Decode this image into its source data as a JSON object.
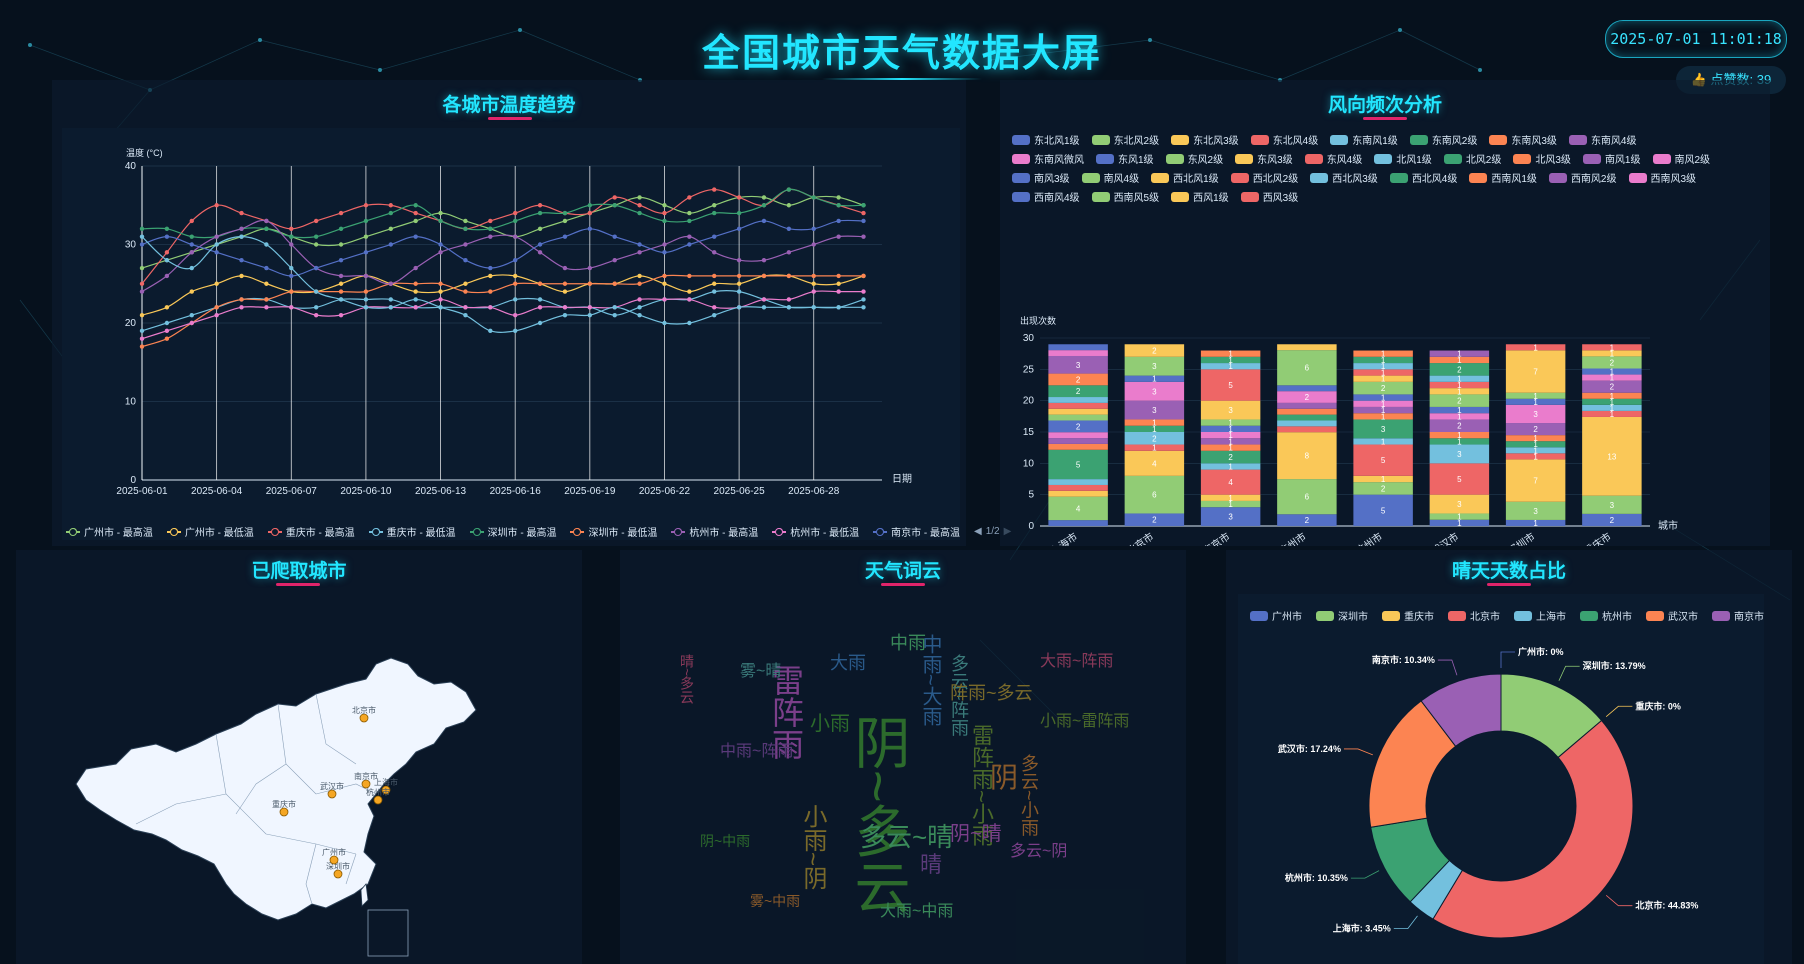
{
  "header": {
    "title": "全国城市天气数据大屏",
    "datetime": "2025-07-01 11:01:18",
    "likes": "👍 点赞数: 39"
  },
  "colors": {
    "accent": "#22e6ff",
    "underline": "#e0246a",
    "palette": [
      "#5470c6",
      "#91cc75",
      "#fac858",
      "#ee6666",
      "#73c0de",
      "#3ba272",
      "#fc8452",
      "#9a60b4",
      "#ea7ccc"
    ]
  },
  "temp_panel": {
    "title": "各城市温度趋势",
    "legend": [
      "广州市 - 最高温",
      "广州市 - 最低温",
      "重庆市 - 最高温",
      "重庆市 - 最低温",
      "深圳市 - 最高温",
      "深圳市 - 最低温",
      "杭州市 - 最高温",
      "杭州市 - 最低温",
      "南京市 - 最高温"
    ],
    "pager": "1/2",
    "chart_data": {
      "type": "line",
      "ylabel": "温度 (°C)",
      "xlabel": "日期",
      "ylim": [
        0,
        40
      ],
      "yticks": [
        "0",
        "10",
        "20",
        "30",
        "40"
      ],
      "xticks": [
        "2025-06-01",
        "2025-06-04",
        "2025-06-07",
        "2025-06-10",
        "2025-06-13",
        "2025-06-16",
        "2025-06-19",
        "2025-06-22",
        "2025-06-25",
        "2025-06-28"
      ],
      "x_count": 30,
      "series": [
        {
          "name": "广州市 - 最高温",
          "color": "#91cc75",
          "values": [
            27,
            28,
            29,
            30,
            31,
            32,
            31,
            30,
            30,
            31,
            32,
            33,
            34,
            33,
            32,
            31,
            32,
            33,
            34,
            35,
            36,
            35,
            34,
            35,
            36,
            36,
            35,
            36,
            36,
            35
          ]
        },
        {
          "name": "广州市 - 最低温",
          "color": "#fac858",
          "values": [
            21,
            22,
            24,
            25,
            26,
            25,
            24,
            24,
            25,
            26,
            25,
            24,
            24,
            25,
            26,
            26,
            25,
            24,
            25,
            25,
            26,
            25,
            24,
            25,
            25,
            26,
            26,
            25,
            25,
            26
          ]
        },
        {
          "name": "重庆市 - 最高温",
          "color": "#ee6666",
          "values": [
            25,
            29,
            33,
            35,
            34,
            33,
            32,
            33,
            34,
            35,
            35,
            34,
            33,
            32,
            33,
            34,
            35,
            34,
            34,
            36,
            35,
            34,
            36,
            37,
            36,
            35,
            37,
            36,
            35,
            34
          ]
        },
        {
          "name": "重庆市 - 最低温",
          "color": "#73c0de",
          "values": [
            19,
            20,
            21,
            22,
            23,
            23,
            22,
            22,
            23,
            23,
            23,
            22,
            22,
            22,
            22,
            23,
            23,
            22,
            22,
            21,
            22,
            23,
            23,
            24,
            24,
            23,
            22,
            22,
            22,
            23
          ]
        },
        {
          "name": "深圳市 - 最高温",
          "color": "#3ba272",
          "values": [
            32,
            32,
            31,
            31,
            32,
            32,
            31,
            31,
            32,
            33,
            34,
            35,
            33,
            32,
            32,
            33,
            34,
            34,
            35,
            35,
            34,
            33,
            33,
            34,
            34,
            35,
            37,
            36,
            35,
            35
          ]
        },
        {
          "name": "深圳市 - 最低温",
          "color": "#fc8452",
          "values": [
            17,
            18,
            20,
            22,
            23,
            23,
            24,
            24,
            24,
            24,
            25,
            25,
            25,
            24,
            24,
            25,
            25,
            25,
            25,
            25,
            25,
            26,
            26,
            26,
            26,
            26,
            26,
            26,
            26,
            26
          ]
        },
        {
          "name": "杭州市 - 最高温",
          "color": "#9a60b4",
          "values": [
            24,
            26,
            29,
            31,
            32,
            33,
            30,
            27,
            26,
            26,
            25,
            27,
            29,
            30,
            31,
            31,
            29,
            27,
            27,
            28,
            29,
            30,
            31,
            29,
            28,
            28,
            29,
            30,
            31,
            31
          ]
        },
        {
          "name": "杭州市 - 最低温",
          "color": "#ea7ccc",
          "values": [
            18,
            19,
            20,
            21,
            22,
            22,
            22,
            21,
            21,
            22,
            22,
            22,
            23,
            22,
            22,
            21,
            22,
            22,
            22,
            22,
            23,
            23,
            23,
            22,
            22,
            23,
            23,
            24,
            24,
            24
          ]
        },
        {
          "name": "南京市 - 最高温",
          "color": "#5470c6",
          "values": [
            30,
            31,
            30,
            29,
            28,
            27,
            26,
            27,
            28,
            29,
            30,
            31,
            30,
            28,
            27,
            28,
            30,
            31,
            32,
            31,
            30,
            29,
            30,
            31,
            32,
            33,
            32,
            32,
            33,
            33
          ]
        },
        {
          "name": "",
          "color": "#73c0de",
          "values": [
            31,
            28,
            27,
            30,
            31,
            30,
            27,
            24,
            23,
            22,
            22,
            23,
            22,
            21,
            19,
            19,
            20,
            21,
            21,
            22,
            21,
            20,
            20,
            21,
            22,
            22,
            22,
            22,
            22,
            22
          ]
        }
      ]
    }
  },
  "wind_panel": {
    "title": "风向频次分析",
    "legend": [
      "东北风1级",
      "东北风2级",
      "东北风3级",
      "东北风4级",
      "东南风1级",
      "东南风2级",
      "东南风3级",
      "东南风4级",
      "东南风微风",
      "东风1级",
      "东风2级",
      "东风3级",
      "东风4级",
      "北风1级",
      "北风2级",
      "北风3级",
      "南风1级",
      "南风2级",
      "南风3级",
      "南风4级",
      "西北风1级",
      "西北风2级",
      "西北风3级",
      "西北风4级",
      "西南风1级",
      "西南风2级",
      "西南风3级",
      "西南风4级",
      "西南风5级",
      "西风1级",
      "西风3级"
    ],
    "chart_data": {
      "type": "bar",
      "stacked": true,
      "ylabel": "出现次数",
      "xlabel": "城市",
      "ylim": [
        0,
        30
      ],
      "yticks": [
        "0",
        "5",
        "10",
        "15",
        "20",
        "25",
        "30"
      ],
      "categories": [
        "上海市",
        "北京市",
        "南京市",
        "广州市",
        "杭州市",
        "武汉市",
        "深圳市",
        "重庆市"
      ],
      "segments": [
        [
          1,
          4,
          1,
          1,
          1,
          5,
          1,
          1,
          1,
          2,
          1,
          1,
          1,
          1,
          2,
          2,
          3,
          1,
          1
        ],
        [
          2,
          6,
          4,
          1,
          2,
          1,
          1,
          3,
          3,
          1,
          3,
          2
        ],
        [
          3,
          1,
          1,
          4,
          1,
          2,
          1,
          1,
          1,
          1,
          1,
          3,
          5,
          1,
          1,
          1
        ],
        [
          2,
          6,
          8,
          1,
          1,
          1,
          1,
          1,
          2,
          1,
          6,
          1
        ],
        [
          5,
          2,
          1,
          5,
          1,
          3,
          1,
          1,
          1,
          1,
          2,
          1,
          1,
          1,
          1,
          1
        ],
        [
          1,
          1,
          3,
          5,
          3,
          1,
          1,
          2,
          1,
          1,
          2,
          1,
          1,
          1,
          2,
          1,
          1
        ],
        [
          1,
          3,
          7,
          1,
          1,
          1,
          1,
          2,
          3,
          1,
          1,
          7,
          1
        ],
        [
          2,
          3,
          13,
          1,
          1,
          1,
          1,
          2,
          1,
          1,
          2,
          1,
          1
        ]
      ]
    }
  },
  "city_map": {
    "title": "已爬取城市",
    "cities": [
      "北京市",
      "南京市",
      "上海市",
      "武汉市",
      "杭州市",
      "重庆市",
      "深圳市",
      "广州市"
    ]
  },
  "word_cloud": {
    "title": "天气词云",
    "words": [
      "阴~多云",
      "雷阵雨",
      "多云~晴",
      "阴",
      "中雨~大雨",
      "小雨~阴",
      "晴",
      "多云~阵雨",
      "大雨~阵雨",
      "雷阵雨~小雨",
      "小雨",
      "阴~晴",
      "中雨",
      "多云~小雨",
      "大雨",
      "阵雨~多云",
      "中雨~阵雨",
      "雾~晴",
      "晴~多云",
      "小雨~雷阵雨",
      "阴~中雨",
      "多云~阴",
      "大雨~中雨",
      "雾~中雨"
    ]
  },
  "sunny_panel": {
    "title": "晴天天数占比",
    "legend": [
      "广州市",
      "深圳市",
      "重庆市",
      "北京市",
      "上海市",
      "杭州市",
      "武汉市",
      "南京市"
    ],
    "chart_data": {
      "type": "pie",
      "donut": true,
      "slices": [
        {
          "name": "广州市",
          "value": 0,
          "label": "广州市: 0%",
          "color": "#5470c6"
        },
        {
          "name": "深圳市",
          "value": 13.79,
          "label": "深圳市: 13.79%",
          "color": "#91cc75"
        },
        {
          "name": "重庆市",
          "value": 0,
          "label": "重庆市: 0%",
          "color": "#fac858"
        },
        {
          "name": "北京市",
          "value": 44.83,
          "label": "北京市: 44.83%",
          "color": "#ee6666"
        },
        {
          "name": "上海市",
          "value": 3.45,
          "label": "上海市: 3.45%",
          "color": "#73c0de"
        },
        {
          "name": "杭州市",
          "value": 10.35,
          "label": "杭州市: 10.35%",
          "color": "#3ba272"
        },
        {
          "name": "武汉市",
          "value": 17.24,
          "label": "武汉市: 17.24%",
          "color": "#fc8452"
        },
        {
          "name": "南京市",
          "value": 10.34,
          "label": "南京市: 10.34%",
          "color": "#9a60b4"
        }
      ]
    }
  }
}
